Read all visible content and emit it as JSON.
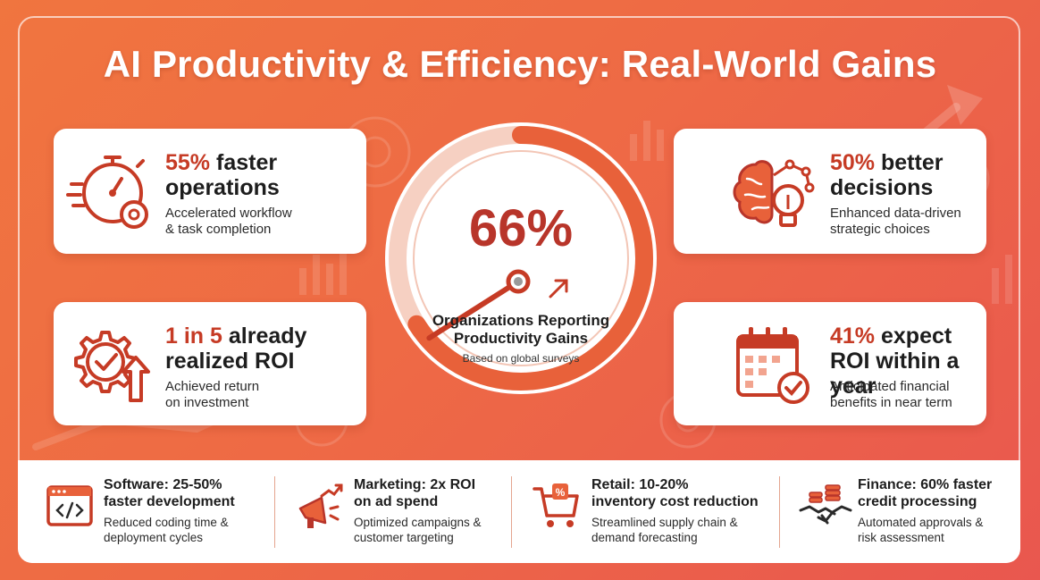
{
  "title": "AI Productivity & Efficiency: Real-World Gains",
  "colors": {
    "accent": "#c63b25",
    "bg_start": "#f0753f",
    "bg_end": "#e9574f",
    "gauge_fill": "#e8613a"
  },
  "gauge": {
    "percent_text": "66%",
    "level": 0.66,
    "label_line1": "Organizations Reporting",
    "label_line2": "Productivity Gains",
    "sub": "Based on global surveys",
    "icon": "trend-arrow-icon"
  },
  "cards": {
    "operations": {
      "icon": "stopwatch-gear-icon",
      "stat": "55%",
      "stat_rest": " faster",
      "line2": "operations",
      "desc1": "Accelerated workflow",
      "desc2": "& task completion"
    },
    "roi": {
      "icon": "gear-check-arrow-icon",
      "stat": "1 in 5",
      "stat_rest": " already",
      "line2": "realized ROI",
      "desc1": "Achieved return",
      "desc2": "on investment"
    },
    "decisions": {
      "icon": "brain-lightbulb-icon",
      "stat": "50%",
      "stat_rest": " better",
      "line2": "decisions",
      "desc1": "Enhanced data-driven",
      "desc2": "strategic choices"
    },
    "expect": {
      "icon": "calendar-check-icon",
      "stat": "41%",
      "stat_rest": " expect",
      "line2": "ROI within a year",
      "desc1": "Anticipated financial",
      "desc2": "benefits in near term"
    }
  },
  "sectors": [
    {
      "icon": "code-window-icon",
      "title1": "Software: 25-50%",
      "title2": "faster development",
      "desc1": "Reduced coding time &",
      "desc2": "deployment cycles"
    },
    {
      "icon": "megaphone-chart-icon",
      "title1": "Marketing: 2x ROI",
      "title2": "on ad spend",
      "desc1": "Optimized campaigns &",
      "desc2": "customer targeting"
    },
    {
      "icon": "shopping-cart-percent-icon",
      "title1": "Retail: 10-20%",
      "title2": "inventory cost reduction",
      "desc1": "Streamlined supply chain &",
      "desc2": "demand forecasting"
    },
    {
      "icon": "coins-handshake-icon",
      "title1": "Finance: 60% faster",
      "title2": "credit processing",
      "desc1": "Automated approvals &",
      "desc2": "risk assessment"
    }
  ]
}
